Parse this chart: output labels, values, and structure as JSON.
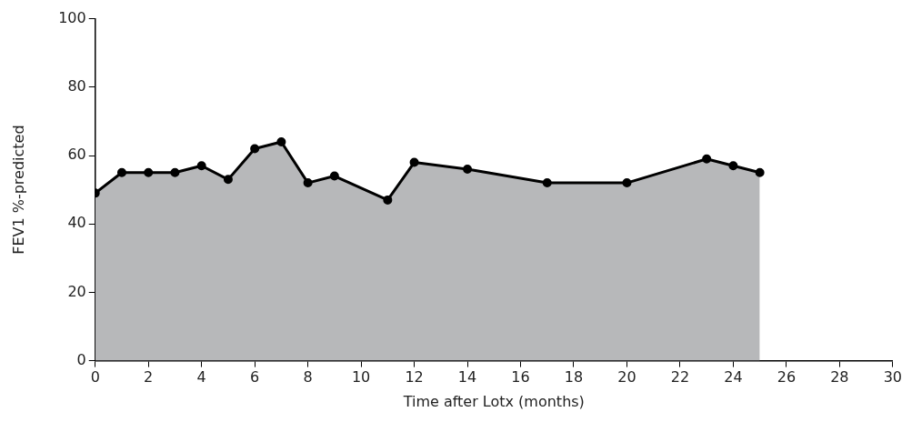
{
  "chart_data": {
    "type": "area",
    "xlabel": "Time after Lotx (months)",
    "ylabel": "FEV1 %-predicted",
    "x": [
      0,
      1,
      2,
      3,
      4,
      5,
      6,
      7,
      8,
      9,
      11,
      12,
      14,
      17,
      20,
      23,
      24,
      25
    ],
    "series": [
      {
        "color": "#b7b8ba",
        "values": [
          49,
          55,
          55,
          55,
          57,
          53,
          62,
          64,
          52,
          54,
          47,
          58,
          56,
          52,
          52,
          59,
          57,
          55
        ]
      }
    ],
    "xlim": [
      0,
      30
    ],
    "xticks": [
      0,
      2,
      4,
      6,
      8,
      10,
      12,
      14,
      16,
      18,
      20,
      22,
      24,
      26,
      28,
      30
    ],
    "ylim": [
      0,
      100
    ],
    "yticks": [
      0,
      20,
      40,
      60,
      80,
      100
    ],
    "grid": false,
    "legend": false,
    "marker": "circle",
    "line_style": "solid"
  }
}
